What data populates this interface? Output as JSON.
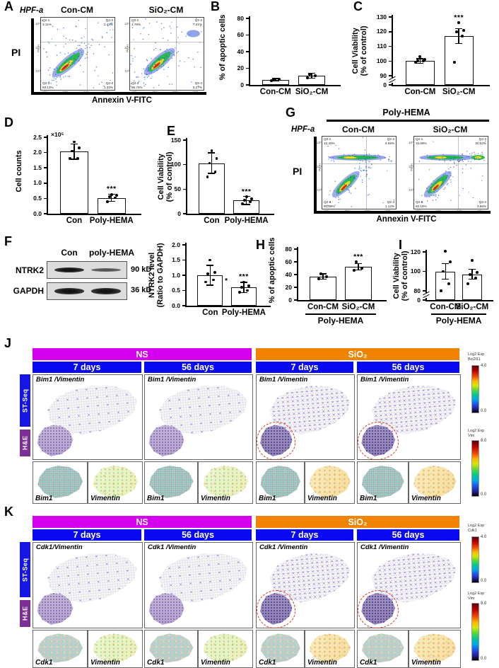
{
  "colors": {
    "ns_header": "#d400ee",
    "sio2_header": "#f08300",
    "timepoint_header": "#0a0af2",
    "st_seq_label": "#1515e8",
    "he_label": "#7b2f96",
    "lesion_outline": "#e62e12"
  },
  "flow_axis": {
    "small_ylabel": "PE-H",
    "left_ticks": [
      "10⁵",
      "10⁴",
      "10³"
    ],
    "bottom_ticks": [
      "10³",
      "10⁴",
      "10⁵",
      "10⁶"
    ]
  },
  "flow_panels": [
    {
      "label": "A",
      "cell_line": "HPF-a",
      "xlabel": "Annexin V-FITC",
      "ylabel": "PI",
      "plots": [
        {
          "title": "Con-CM",
          "quads": [
            {
              "name": "Q2-1",
              "value": "3.11%"
            },
            {
              "name": "Q2-2",
              "value": "2.44%"
            },
            {
              "name": "Q2-3",
              "value": "93.12%"
            },
            {
              "name": "Q2-4",
              "value": "1.33%"
            }
          ]
        },
        {
          "title": "SiO₂-CM",
          "quads": [
            {
              "name": "Q2-1",
              "value": "1.78%"
            },
            {
              "name": "Q2-2",
              "value": "7.21%"
            },
            {
              "name": "Q2-3",
              "value": "85.74%"
            },
            {
              "name": "Q2-4",
              "value": "5.27%"
            }
          ]
        }
      ]
    },
    {
      "label": "G",
      "group": "Poly-HEMA",
      "cell_line": "HPF-a",
      "xlabel": "Annexin V-FITC",
      "ylabel": "PI",
      "plots": [
        {
          "title": "Con-CM",
          "quads": [
            {
              "name": "Q2-1",
              "value": "13.40%"
            },
            {
              "name": "Q2-2",
              "value": "4.59%"
            },
            {
              "name": "Q2-3",
              "value": "80.89%"
            },
            {
              "name": "Q2-4",
              "value": "1.12%"
            }
          ]
        },
        {
          "title": "SiO₂-CM",
          "quads": [
            {
              "name": "Q2-1",
              "value": "15.69%"
            },
            {
              "name": "Q2-2",
              "value": "20.52%"
            },
            {
              "name": "Q2-3",
              "value": "60.15%"
            },
            {
              "name": "Q2-4",
              "value": "3.65%"
            }
          ]
        }
      ]
    }
  ],
  "chart_data": [
    {
      "id": "B",
      "panel_letter": "B",
      "type": "bar",
      "ylabel": "% of apoptic cells",
      "categories": [
        "Con-CM",
        "SiO₂-CM"
      ],
      "values": [
        6,
        11
      ],
      "errors": [
        1.5,
        3
      ],
      "points": [
        [
          5,
          6.5,
          7
        ],
        [
          8.5,
          11,
          13
        ]
      ],
      "yticks": [
        "0",
        "20",
        "40",
        "60",
        "80"
      ],
      "ylim": [
        0,
        80
      ],
      "sig": [
        "",
        ""
      ]
    },
    {
      "id": "C",
      "panel_letter": "C",
      "type": "bar",
      "ylabel": [
        "Cell Viability",
        "(% of control)"
      ],
      "categories": [
        "Con-CM",
        "SiO₂-CM"
      ],
      "values": [
        100,
        117
      ],
      "errors": [
        1.5,
        5
      ],
      "points": [
        [
          99,
          100,
          100,
          101,
          103
        ],
        [
          99,
          117,
          120,
          121,
          126
        ]
      ],
      "yticks": [
        "0",
        "90",
        "100",
        "110",
        "120",
        "130"
      ],
      "ylim": [
        0,
        130
      ],
      "ybreak": true,
      "sig": [
        "",
        "***"
      ]
    },
    {
      "id": "D",
      "panel_letter": "D",
      "type": "bar",
      "ylabel": "Cell counts",
      "multiplier": "×10⁵",
      "categories": [
        "Con",
        "Poly-HEMA"
      ],
      "values": [
        2.03,
        0.52
      ],
      "errors": [
        0.25,
        0.12
      ],
      "points": [
        [
          1.8,
          1.8,
          2.05,
          2.15,
          2.35
        ],
        [
          0.4,
          0.52,
          0.55,
          0.6,
          0.62
        ]
      ],
      "yticks": [
        "0.0",
        "0.5",
        "1.0",
        "1.5",
        "2.0",
        "2.5"
      ],
      "ylim": [
        0,
        2.5
      ],
      "sig": [
        "",
        "***"
      ]
    },
    {
      "id": "E",
      "panel_letter": "E",
      "type": "bar",
      "ylabel": [
        "Cell Viability",
        "(% of control)"
      ],
      "categories": [
        "Con",
        "Poly-HEMA"
      ],
      "values": [
        103,
        27
      ],
      "errors": [
        21,
        8
      ],
      "points": [
        [
          75,
          85,
          103,
          112,
          128
        ],
        [
          20,
          24,
          27,
          30,
          35
        ]
      ],
      "yticks": [
        "0",
        "50",
        "100",
        "150"
      ],
      "ylim": [
        0,
        150
      ],
      "sig": [
        "",
        "***"
      ]
    },
    {
      "id": "F",
      "panel_letter": "F",
      "type": "bar",
      "ylabel": [
        "NTRK2 level",
        "(Ratio to GAPDH)"
      ],
      "categories": [
        "Con",
        "Poly-HEMA"
      ],
      "values": [
        1.0,
        0.6
      ],
      "errors": [
        0.33,
        0.17
      ],
      "points": [
        [
          0.78,
          0.85,
          1.05,
          1.1,
          1.5
        ],
        [
          0.45,
          0.5,
          0.6,
          0.65,
          0.78
        ]
      ],
      "yticks": [
        "0.0",
        "0.5",
        "1.0",
        "1.5",
        "2.0"
      ],
      "ylim": [
        0,
        2
      ],
      "sig": [
        "",
        "***"
      ],
      "note": "*",
      "note_v": 0.8
    },
    {
      "id": "H",
      "panel_letter": "H",
      "type": "bar",
      "ylabel": "% of apoptic cells",
      "categories": [
        "Con-CM",
        "SiO₂-CM"
      ],
      "values": [
        37,
        52
      ],
      "errors": [
        4,
        5
      ],
      "points": [
        [
          33,
          37,
          41
        ],
        [
          47,
          50,
          60
        ]
      ],
      "yticks": [
        "0",
        "20",
        "40",
        "60",
        "80"
      ],
      "ylim": [
        0,
        80
      ],
      "sig": [
        "",
        "***"
      ],
      "group_label": "Poly-HEMA"
    },
    {
      "id": "I",
      "panel_letter": "I",
      "type": "bar",
      "ylabel": [
        "Cell Viability",
        "(% of control)"
      ],
      "categories": [
        "Con-CM",
        "SiO₂-CM"
      ],
      "values": [
        100,
        97
      ],
      "errors": [
        8,
        5
      ],
      "points": [
        [
          80,
          87,
          100,
          110,
          121
        ],
        [
          87,
          93,
          97,
          99,
          111
        ]
      ],
      "yticks": [
        "0",
        "80",
        "100",
        "120"
      ],
      "ylim": [
        0,
        120
      ],
      "ybreak": true,
      "sig": [
        "",
        ""
      ],
      "group_label": "Poly-HEMA"
    }
  ],
  "blot": {
    "label": "F",
    "lanes": [
      "Con",
      "poly-HEMA"
    ],
    "rows": [
      {
        "protein": "NTRK2",
        "size": "90 kD"
      },
      {
        "protein": "GAPDH",
        "size": "36 kD"
      }
    ]
  },
  "spatial_panels": [
    {
      "label": "J",
      "groups": [
        {
          "name": "NS"
        },
        {
          "name": "SiO₂"
        }
      ],
      "timepoints": [
        "7 days",
        "56 days",
        "7 days",
        "56 days"
      ],
      "row_labels": [
        "ST-Seq",
        "H&E"
      ],
      "boxes": [
        {
          "title": "Bim1 /Vimentin"
        },
        {
          "title": "Bim1 /Vimentin"
        },
        {
          "title": "Bim1 /Vimentin"
        },
        {
          "title": "Bim1 /Vimentin"
        }
      ],
      "gene_boxes": [
        {
          "label": "Bim1"
        },
        {
          "label": "Vimentin"
        },
        {
          "label": "Bim1"
        },
        {
          "label": "Vimentin"
        },
        {
          "label": "Bim1"
        },
        {
          "label": "Vimentin"
        },
        {
          "label": "Bim1"
        },
        {
          "label": "Vimentin"
        }
      ],
      "colorbars": [
        {
          "line1": "Log2 Exp",
          "line2": "Bcl2l11",
          "max": "4.0",
          "min": "0.0"
        },
        {
          "line1": "Log2 Exp",
          "line2": "Vim",
          "max": "8.0",
          "min": "0.0"
        }
      ]
    },
    {
      "label": "K",
      "groups": [
        {
          "name": "NS"
        },
        {
          "name": "SiO₂"
        }
      ],
      "timepoints": [
        "7 days",
        "56 days",
        "7 days",
        "56 days"
      ],
      "row_labels": [
        "ST-Seq",
        "H&E"
      ],
      "boxes": [
        {
          "title": "Cdk1/Vimentin"
        },
        {
          "title": "Cdk1 /Vimentin"
        },
        {
          "title": "Cdk1 /Vimentin"
        },
        {
          "title": "Cdk1 /Vimentin"
        }
      ],
      "gene_boxes": [
        {
          "label": "Cdk1"
        },
        {
          "label": "Vimentin"
        },
        {
          "label": "Cdk1"
        },
        {
          "label": "Vimentin"
        },
        {
          "label": "Cdk1"
        },
        {
          "label": "Vimentin"
        },
        {
          "label": "Cdk1"
        },
        {
          "label": "Vimentin"
        }
      ],
      "colorbars": [
        {
          "line1": "Log2 Exp",
          "line2": "Cdk1",
          "max": "4.0",
          "min": "0.0"
        },
        {
          "line1": "Log2 Exp",
          "line2": "Vim",
          "max": "8.0",
          "min": "0.0"
        }
      ]
    }
  ]
}
